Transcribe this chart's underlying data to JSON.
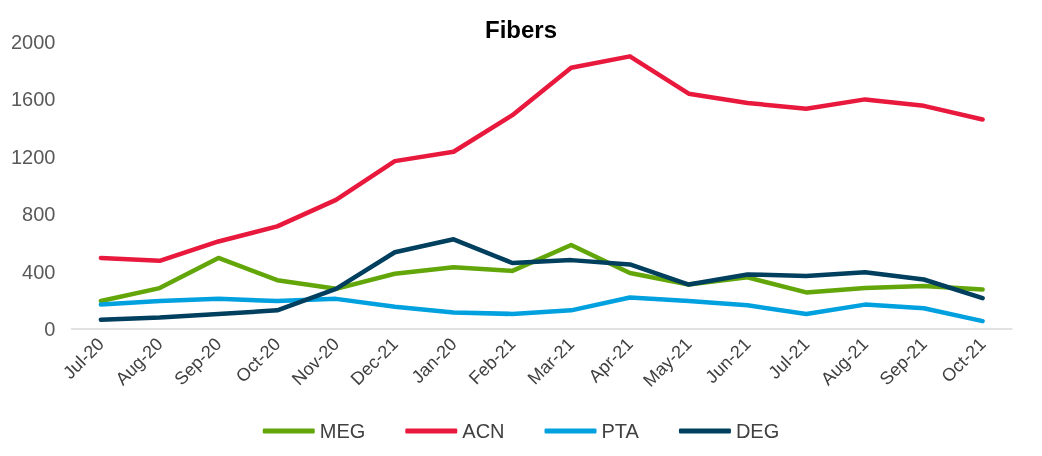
{
  "chart_data": {
    "type": "line",
    "title": "Fibers",
    "categories": [
      "Jul-20",
      "Aug-20",
      "Sep-20",
      "Oct-20",
      "Nov-20",
      "Dec-21",
      "Jan-20",
      "Feb-21",
      "Mar-21",
      "Apr-21",
      "May-21",
      "Jun-21",
      "Jul-21",
      "Aug-21",
      "Sep-21",
      "Oct-21"
    ],
    "series": [
      {
        "name": "MEG",
        "color": "#62a60a",
        "values": [
          195,
          285,
          495,
          340,
          280,
          385,
          430,
          405,
          585,
          390,
          310,
          360,
          255,
          285,
          300,
          275
        ]
      },
      {
        "name": "ACN",
        "color": "#e8193c",
        "values": [
          495,
          475,
          610,
          715,
          900,
          1170,
          1235,
          1490,
          1820,
          1900,
          1640,
          1575,
          1535,
          1600,
          1555,
          1460
        ]
      },
      {
        "name": "PTA",
        "color": "#00a1de",
        "values": [
          170,
          195,
          210,
          195,
          210,
          155,
          115,
          105,
          130,
          220,
          195,
          165,
          105,
          170,
          145,
          55
        ]
      },
      {
        "name": "DEG",
        "color": "#003f5e",
        "values": [
          65,
          80,
          105,
          130,
          280,
          535,
          625,
          460,
          480,
          450,
          310,
          380,
          370,
          395,
          345,
          215
        ]
      }
    ],
    "ylim": [
      0,
      2000
    ],
    "yticks": [
      0,
      400,
      800,
      1200,
      1600,
      2000
    ],
    "grid": false,
    "legend": "bottom",
    "marker": "none",
    "line_style": "solid"
  }
}
